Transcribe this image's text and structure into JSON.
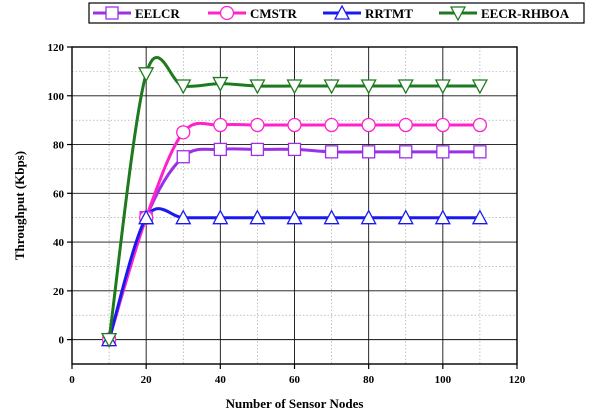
{
  "chart_data": {
    "type": "line",
    "title": "",
    "xlabel": "Number of Sensor Nodes",
    "ylabel": "Throughput (Kbps)",
    "xlim": [
      0,
      120
    ],
    "ylim": [
      -10,
      120
    ],
    "xticks": [
      0,
      20,
      40,
      60,
      80,
      100,
      120
    ],
    "yticks": [
      0,
      20,
      40,
      60,
      80,
      100,
      120
    ],
    "grid": true,
    "legend_position": "top",
    "x": [
      10,
      20,
      30,
      40,
      50,
      60,
      70,
      80,
      90,
      100,
      110
    ],
    "series": [
      {
        "name": "EELCR",
        "color": "#9b30e8",
        "marker": "square",
        "values": [
          0,
          50,
          75,
          78,
          78,
          78,
          77,
          77,
          77,
          77,
          77
        ]
      },
      {
        "name": "CMSTR",
        "color": "#ff22cc",
        "marker": "circle",
        "values": [
          0,
          50,
          85,
          88,
          88,
          88,
          88,
          88,
          88,
          88,
          88
        ]
      },
      {
        "name": "RRTMT",
        "color": "#1a1aee",
        "marker": "triangle-up",
        "values": [
          0,
          50,
          50,
          50,
          50,
          50,
          50,
          50,
          50,
          50,
          50
        ]
      },
      {
        "name": "EECR-RHBOA",
        "color": "#1e7a1e",
        "marker": "triangle-down",
        "values": [
          0,
          109,
          104,
          105,
          104,
          104,
          104,
          104,
          104,
          104,
          104
        ]
      }
    ]
  }
}
